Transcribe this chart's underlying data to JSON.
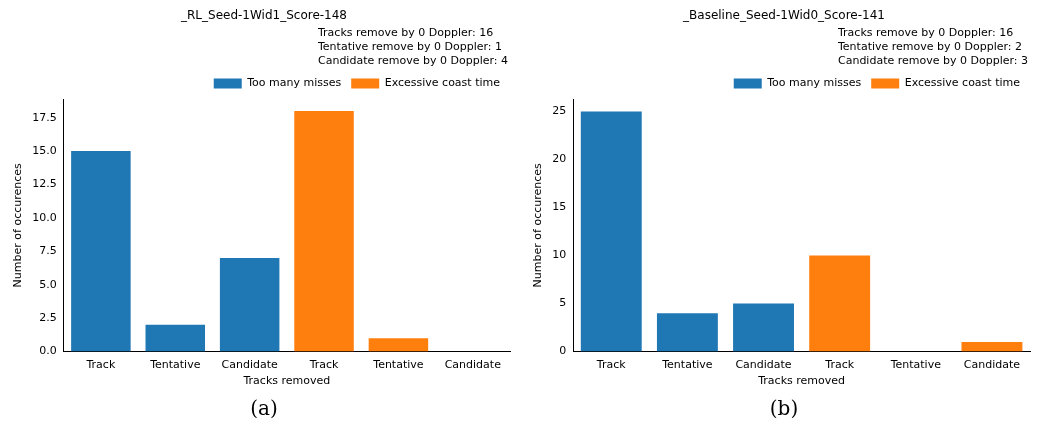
{
  "chart_data": [
    {
      "type": "bar",
      "title": "_RL_Seed-1Wid1_Score-148",
      "subtitle": "(a)",
      "categories": [
        "Track",
        "Tentative",
        "Candidate",
        "Track",
        "Tentative",
        "Candidate"
      ],
      "series": [
        {
          "name": "Too many misses",
          "color": "#1f77b4",
          "values": [
            15,
            2,
            7,
            null,
            null,
            null
          ]
        },
        {
          "name": "Excessive coast time",
          "color": "#ff7f0e",
          "values": [
            null,
            null,
            null,
            18,
            1,
            0
          ]
        }
      ],
      "xlabel": "Tracks removed",
      "ylabel": "Number of occurences",
      "ylim": [
        0,
        18.9
      ],
      "yticks": [
        {
          "value": 0,
          "label": "0.0"
        },
        2.5,
        {
          "value": 5,
          "label": "5.0"
        },
        7.5,
        {
          "value": 10,
          "label": "10.0"
        },
        12.5,
        {
          "value": 15,
          "label": "15.0"
        },
        17.5
      ],
      "grid": false,
      "legend": "top right",
      "annotations": [
        "Tracks remove by 0 Doppler: 16",
        "Tentative remove by 0 Doppler: 1",
        "Candidate remove by 0 Doppler: 4"
      ]
    },
    {
      "type": "bar",
      "title": "_Baseline_Seed-1Wid0_Score-141",
      "subtitle": "(b)",
      "categories": [
        "Track",
        "Tentative",
        "Candidate",
        "Track",
        "Tentative",
        "Candidate"
      ],
      "series": [
        {
          "name": "Too many misses",
          "color": "#1f77b4",
          "values": [
            25,
            4,
            5,
            null,
            null,
            null
          ]
        },
        {
          "name": "Excessive coast time",
          "color": "#ff7f0e",
          "values": [
            null,
            null,
            null,
            10,
            0,
            1
          ]
        }
      ],
      "xlabel": "Tracks removed",
      "ylabel": "Number of occurences",
      "ylim": [
        0,
        26.3
      ],
      "yticks": [
        0,
        5,
        10,
        15,
        20,
        25
      ],
      "grid": false,
      "legend": "top right",
      "annotations": [
        "Tracks remove by 0 Doppler: 16",
        "Tentative remove by 0 Doppler: 2",
        "Candidate remove by 0 Doppler: 3"
      ]
    }
  ]
}
